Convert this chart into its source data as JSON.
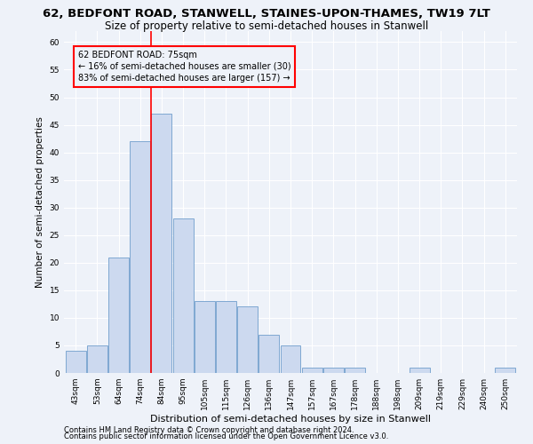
{
  "title": "62, BEDFONT ROAD, STANWELL, STAINES-UPON-THAMES, TW19 7LT",
  "subtitle": "Size of property relative to semi-detached houses in Stanwell",
  "xlabel": "Distribution of semi-detached houses by size in Stanwell",
  "ylabel": "Number of semi-detached properties",
  "categories": [
    "43sqm",
    "53sqm",
    "64sqm",
    "74sqm",
    "84sqm",
    "95sqm",
    "105sqm",
    "115sqm",
    "126sqm",
    "136sqm",
    "147sqm",
    "157sqm",
    "167sqm",
    "178sqm",
    "188sqm",
    "198sqm",
    "209sqm",
    "219sqm",
    "229sqm",
    "240sqm",
    "250sqm"
  ],
  "values": [
    4,
    5,
    21,
    42,
    47,
    28,
    13,
    13,
    12,
    7,
    5,
    1,
    1,
    1,
    0,
    0,
    1,
    0,
    0,
    0,
    1
  ],
  "bar_color": "#ccd9ef",
  "bar_edge_color": "#7fa8d1",
  "annotation_text": "62 BEDFONT ROAD: 75sqm\n← 16% of semi-detached houses are smaller (30)\n83% of semi-detached houses are larger (157) →",
  "red_line_x": 3.5,
  "ylim": [
    0,
    62
  ],
  "yticks": [
    0,
    5,
    10,
    15,
    20,
    25,
    30,
    35,
    40,
    45,
    50,
    55,
    60
  ],
  "footnote1": "Contains HM Land Registry data © Crown copyright and database right 2024.",
  "footnote2": "Contains public sector information licensed under the Open Government Licence v3.0.",
  "background_color": "#eef2f9",
  "grid_color": "#ffffff",
  "title_fontsize": 9.5,
  "subtitle_fontsize": 8.5,
  "xlabel_fontsize": 8,
  "ylabel_fontsize": 7.5,
  "tick_fontsize": 6.5,
  "footnote_fontsize": 6
}
